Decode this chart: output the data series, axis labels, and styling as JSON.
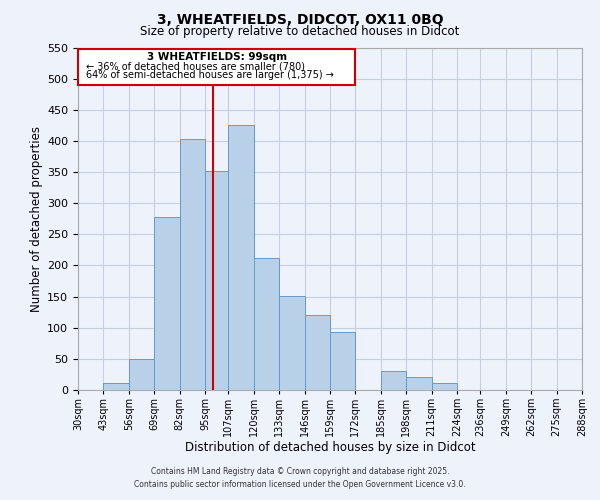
{
  "title": "3, WHEATFIELDS, DIDCOT, OX11 0BQ",
  "subtitle": "Size of property relative to detached houses in Didcot",
  "xlabel": "Distribution of detached houses by size in Didcot",
  "ylabel": "Number of detached properties",
  "bin_labels": [
    "30sqm",
    "43sqm",
    "56sqm",
    "69sqm",
    "82sqm",
    "95sqm",
    "107sqm",
    "120sqm",
    "133sqm",
    "146sqm",
    "159sqm",
    "172sqm",
    "185sqm",
    "198sqm",
    "211sqm",
    "224sqm",
    "236sqm",
    "249sqm",
    "262sqm",
    "275sqm",
    "288sqm"
  ],
  "bin_edges": [
    30,
    43,
    56,
    69,
    82,
    95,
    107,
    120,
    133,
    146,
    159,
    172,
    185,
    198,
    211,
    224,
    236,
    249,
    262,
    275,
    288
  ],
  "bar_heights": [
    0,
    12,
    50,
    278,
    403,
    352,
    425,
    212,
    151,
    120,
    93,
    0,
    31,
    21,
    12,
    0,
    0,
    0,
    0,
    0
  ],
  "bar_color": "#b8d0e8",
  "bar_edge_color": "#6699cc",
  "vline_x": 99,
  "vline_color": "#cc0000",
  "ylim": [
    0,
    550
  ],
  "yticks": [
    0,
    50,
    100,
    150,
    200,
    250,
    300,
    350,
    400,
    450,
    500,
    550
  ],
  "annotation_title": "3 WHEATFIELDS: 99sqm",
  "annotation_line1": "← 36% of detached houses are smaller (780)",
  "annotation_line2": "64% of semi-detached houses are larger (1,375) →",
  "footnote1": "Contains HM Land Registry data © Crown copyright and database right 2025.",
  "footnote2": "Contains public sector information licensed under the Open Government Licence v3.0.",
  "bg_color": "#eef2fb",
  "grid_color": "#c5cfe0"
}
